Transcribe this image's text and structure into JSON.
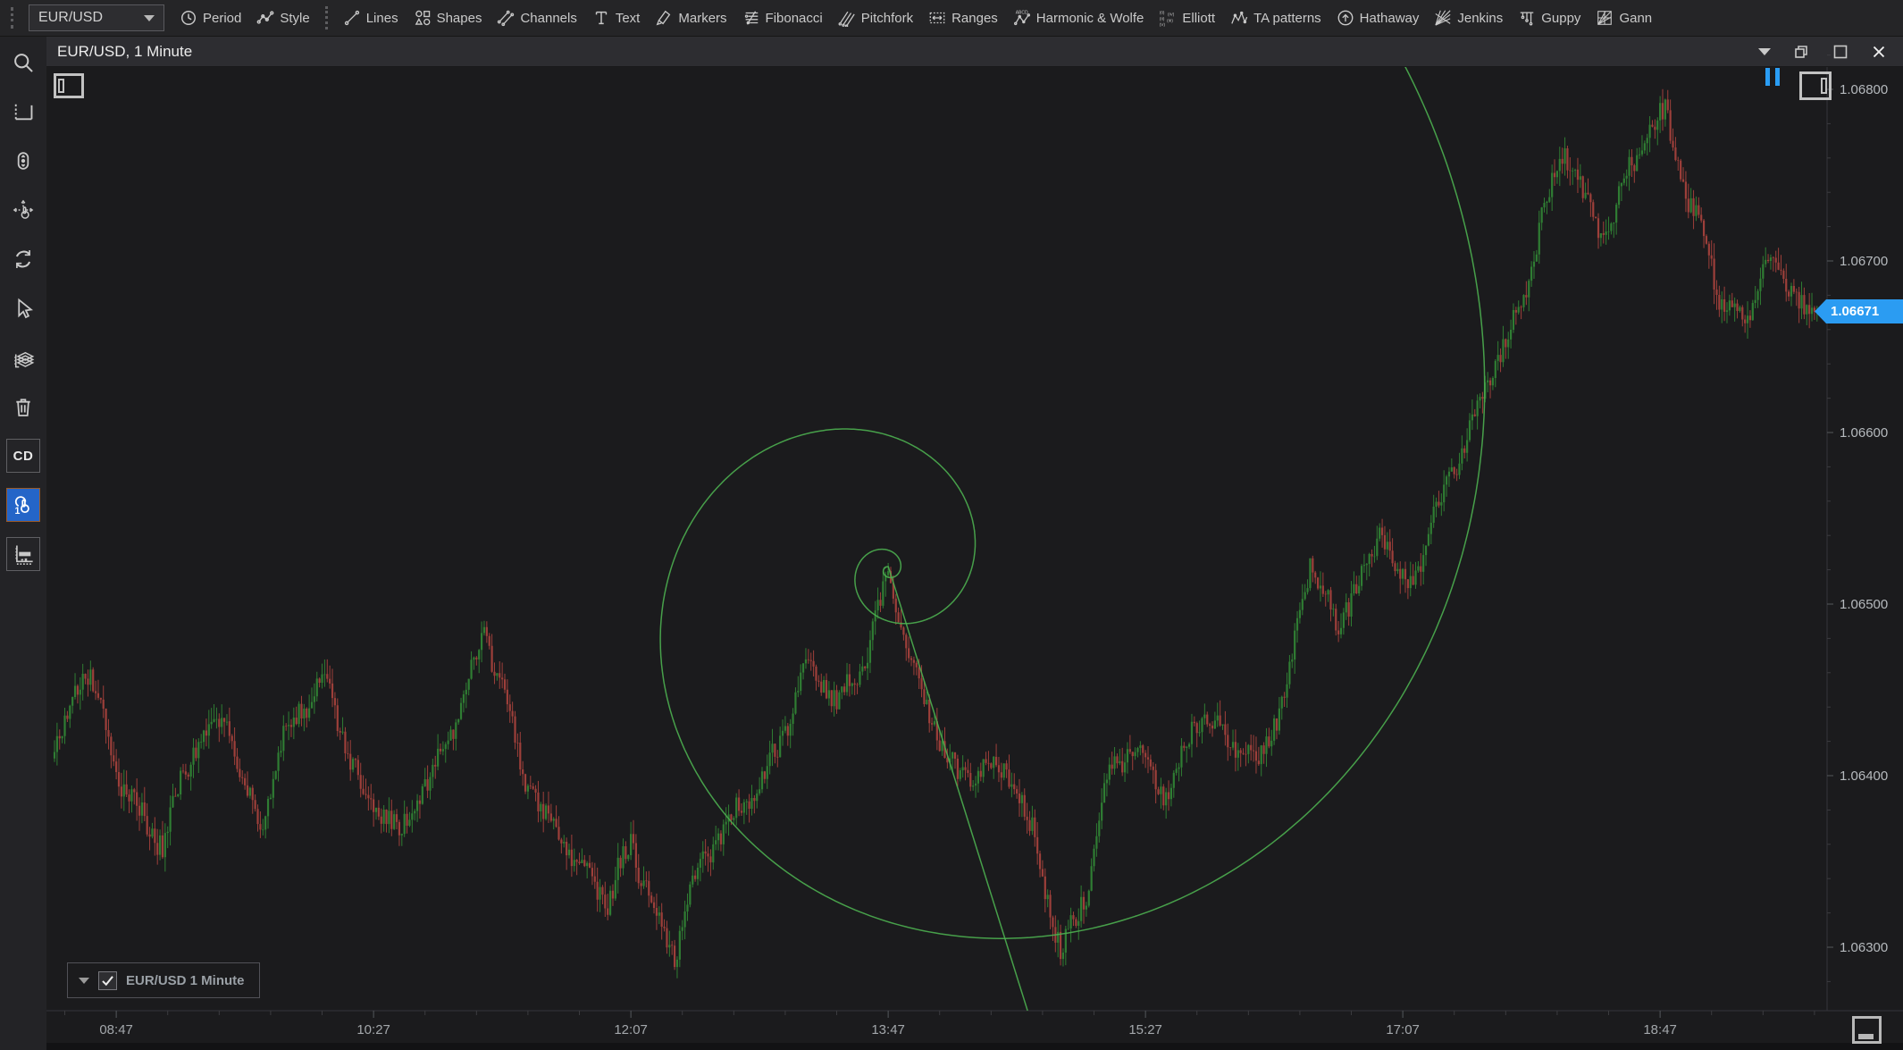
{
  "toolbar": {
    "symbol": "EUR/USD",
    "items": [
      {
        "label": "Period"
      },
      {
        "label": "Style"
      },
      {
        "label": "Lines"
      },
      {
        "label": "Shapes"
      },
      {
        "label": "Channels"
      },
      {
        "label": "Text"
      },
      {
        "label": "Markers"
      },
      {
        "label": "Fibonacci"
      },
      {
        "label": "Pitchfork"
      },
      {
        "label": "Ranges"
      },
      {
        "label": "Harmonic & Wolfe"
      },
      {
        "label": "Elliott"
      },
      {
        "label": "TA patterns"
      },
      {
        "label": "Hathaway"
      },
      {
        "label": "Jenkins"
      },
      {
        "label": "Guppy"
      },
      {
        "label": "Gann"
      }
    ]
  },
  "sidebar": {
    "cd_label": "CD",
    "icons": [
      "search",
      "price-scale",
      "mouse-scroll",
      "pan-mode",
      "sync",
      "cursor",
      "layers",
      "delete",
      "cd",
      "one-click-trading",
      "market-depth"
    ],
    "active_icon": "one-click-trading"
  },
  "window": {
    "title": "EUR/USD, 1 Minute",
    "controls": [
      "collapse",
      "restore",
      "maximize",
      "close"
    ]
  },
  "legend": {
    "label": "EUR/USD 1 Minute",
    "checked": true
  },
  "chart_data": {
    "type": "candlestick",
    "symbol": "EUR/USD",
    "timeframe": "1 Minute",
    "current_price": "1.06671",
    "y_axis": {
      "ticks": [
        "1.06800",
        "1.06700",
        "1.06600",
        "1.06500",
        "1.06400",
        "1.06300"
      ],
      "minor_step": 0.0002,
      "min": 1.0627,
      "max": 1.0682
    },
    "x_axis": {
      "start": "08:23",
      "end": "19:49",
      "minor_step_min": 20,
      "ticks": [
        "08:47",
        "10:27",
        "12:07",
        "13:47",
        "15:27",
        "17:07",
        "18:47"
      ]
    },
    "price_path": [
      [
        "08:23",
        1.0641
      ],
      [
        "08:35",
        1.0646
      ],
      [
        "08:49",
        1.064
      ],
      [
        "09:05",
        1.0636
      ],
      [
        "09:17",
        1.0641
      ],
      [
        "09:29",
        1.0644
      ],
      [
        "09:43",
        1.0637
      ],
      [
        "09:53",
        1.0642
      ],
      [
        "10:09",
        1.0646
      ],
      [
        "10:23",
        1.0639
      ],
      [
        "10:37",
        1.0636
      ],
      [
        "10:49",
        1.064
      ],
      [
        "11:10",
        1.0648
      ],
      [
        "11:25",
        1.064
      ],
      [
        "11:39",
        1.0637
      ],
      [
        "11:58",
        1.0632
      ],
      [
        "12:07",
        1.0636
      ],
      [
        "12:24",
        1.063
      ],
      [
        "12:33",
        1.0634
      ],
      [
        "12:45",
        1.0637
      ],
      [
        "13:04",
        1.0642
      ],
      [
        "13:15",
        1.0646
      ],
      [
        "13:27",
        1.0644
      ],
      [
        "13:37",
        1.0647
      ],
      [
        "13:47",
        1.0652
      ],
      [
        "14:00",
        1.0644
      ],
      [
        "14:14",
        1.064
      ],
      [
        "14:24",
        1.0641
      ],
      [
        "14:33",
        1.064
      ],
      [
        "14:43",
        1.0636
      ],
      [
        "14:54",
        1.063
      ],
      [
        "15:04",
        1.0634
      ],
      [
        "15:13",
        1.064
      ],
      [
        "15:23",
        1.0641
      ],
      [
        "15:35",
        1.0639
      ],
      [
        "15:46",
        1.0644
      ],
      [
        "15:58",
        1.0642
      ],
      [
        "16:10",
        1.064
      ],
      [
        "16:22",
        1.0646
      ],
      [
        "16:31",
        1.0653
      ],
      [
        "16:41",
        1.0648
      ],
      [
        "16:50",
        1.0651
      ],
      [
        "16:59",
        1.0655
      ],
      [
        "17:09",
        1.0651
      ],
      [
        "17:18",
        1.0654
      ],
      [
        "17:28",
        1.0658
      ],
      [
        "17:35",
        1.0661
      ],
      [
        "17:44",
        1.0665
      ],
      [
        "17:54",
        1.0668
      ],
      [
        "18:01",
        1.0672
      ],
      [
        "18:10",
        1.0676
      ],
      [
        "18:17",
        1.0674
      ],
      [
        "18:24",
        1.0672
      ],
      [
        "18:34",
        1.0675
      ],
      [
        "18:43",
        1.0677
      ],
      [
        "18:49",
        1.0678
      ],
      [
        "18:57",
        1.0674
      ],
      [
        "19:04",
        1.0672
      ],
      [
        "19:11",
        1.0668
      ],
      [
        "19:21",
        1.0666
      ],
      [
        "19:28",
        1.067
      ],
      [
        "19:35",
        1.0669
      ],
      [
        "19:42",
        1.0668
      ],
      [
        "19:48",
        1.06671
      ]
    ],
    "overlay": {
      "type": "fibonacci-spiral",
      "anchor_time": "13:47",
      "anchor_price": 1.0652
    },
    "colors": {
      "up": "#2f7d33",
      "down": "#9d3f3a",
      "spiral": "#4caf50",
      "tag": "#2b9cf2",
      "accent": "#2a9df4"
    },
    "legend_position": "bottom-left",
    "grid": false
  }
}
